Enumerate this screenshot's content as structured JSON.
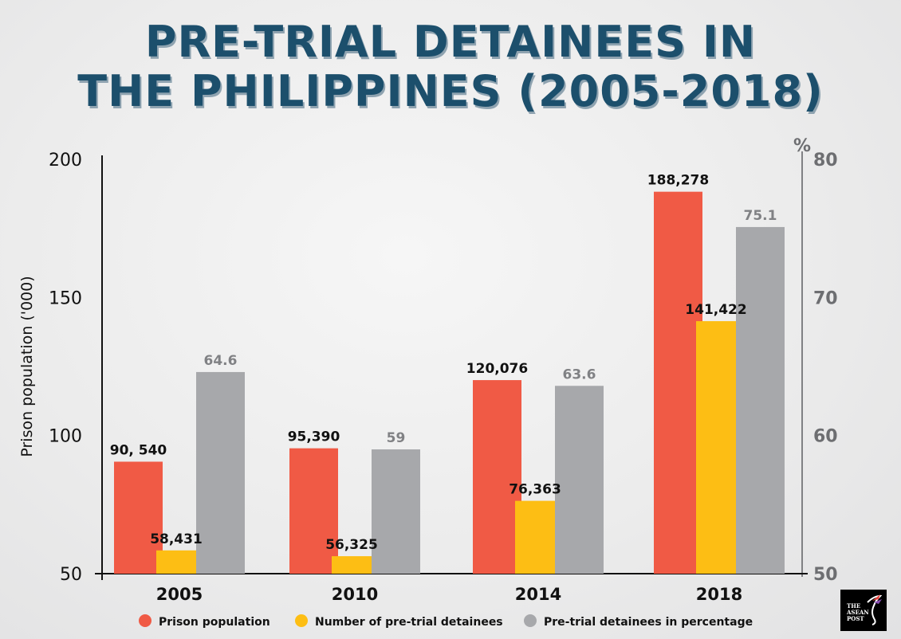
{
  "title_lines": [
    "PRE-TRIAL DETAINEES IN",
    "THE PHILIPPINES (2005-2018)"
  ],
  "logo_text": "THE ASEAN POST",
  "chart_data": {
    "type": "bar",
    "title": "PRE-TRIAL DETAINEES IN THE PHILIPPINES (2005-2018)",
    "categories": [
      "2005",
      "2010",
      "2014",
      "2018"
    ],
    "ylabel": "Prison population ('000)",
    "ylim": [
      50,
      200
    ],
    "yticks": [
      "200",
      "150",
      "100",
      "50"
    ],
    "y2label": "%",
    "y2lim": [
      50,
      80
    ],
    "y2ticks": [
      "80",
      "70",
      "60",
      "50"
    ],
    "grid": false,
    "legend_position": "bottom",
    "series": [
      {
        "name": "Prison population",
        "axis": "left",
        "color": "#f05a45",
        "values": [
          90.54,
          95.39,
          120.076,
          188.278
        ],
        "labels": [
          "90, 540",
          "95,390",
          "120,076",
          "188,278"
        ],
        "label_color": "#111111"
      },
      {
        "name": "Number of pre-trial detainees",
        "axis": "left",
        "color": "#fdbe14",
        "values": [
          58.431,
          56.325,
          76.363,
          141.422
        ],
        "labels": [
          "58,431",
          "56,325",
          "76,363",
          "141,422"
        ],
        "label_color": "#111111"
      },
      {
        "name": "Pre-trial detainees in percentage",
        "axis": "right",
        "color": "#a7a8ab",
        "values": [
          64.6,
          59,
          63.6,
          75.1
        ],
        "labels": [
          "64.6",
          "59",
          "63.6",
          "75.1"
        ],
        "label_color": "#808184"
      }
    ]
  }
}
